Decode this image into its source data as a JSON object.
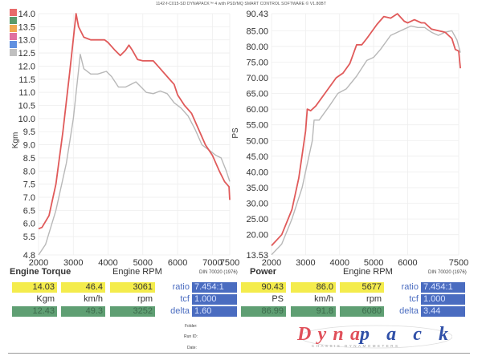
{
  "header": "1142-f-C015-SD DYNAPACK™ 4 with PSD/MQ SMART CONTROL SOFTWARE © V1.80BT",
  "colors": {
    "run1": "#e05a5a",
    "run2": "#b8b8b8",
    "legend": [
      "#e86a6a",
      "#5a9a6a",
      "#f0a850",
      "#e070a0",
      "#6090e0",
      "#c0c0c0"
    ]
  },
  "chart_data": [
    {
      "type": "line",
      "title": "Engine Torque",
      "xlabel": "Engine RPM",
      "ylabel": "Kgm",
      "note": "DIN 70020 (1976)",
      "xlim": [
        2000,
        7500
      ],
      "ylim": [
        4.8,
        14.0
      ],
      "xticks": [
        "2000",
        "3000",
        "4000",
        "5000",
        "6000",
        "7000",
        "7500"
      ],
      "yticks": [
        "14.0",
        "13.5",
        "13.0",
        "12.5",
        "12.0",
        "11.5",
        "11.0",
        "10.5",
        "10.0",
        "9.5",
        "9.0",
        "8.5",
        "8.0",
        "7.5",
        "7.0",
        "6.5",
        "6.0",
        "5.5",
        "4.8"
      ],
      "series": [
        {
          "name": "run1",
          "x": [
            2000,
            2100,
            2300,
            2500,
            2700,
            2900,
            3080,
            3150,
            3300,
            3500,
            3900,
            4000,
            4200,
            4350,
            4500,
            4600,
            4700,
            4850,
            5000,
            5300,
            5500,
            5700,
            5900,
            6000,
            6200,
            6400,
            6600,
            6800,
            7000,
            7200,
            7350,
            7480,
            7500
          ],
          "y": [
            5.8,
            5.85,
            6.3,
            7.5,
            9.5,
            11.8,
            14.0,
            13.5,
            13.1,
            13.0,
            13.0,
            12.9,
            12.6,
            12.4,
            12.6,
            12.8,
            12.6,
            12.25,
            12.2,
            12.2,
            11.9,
            11.6,
            11.3,
            10.9,
            10.5,
            10.2,
            9.6,
            9.0,
            8.6,
            8.0,
            7.6,
            7.4,
            6.9
          ]
        },
        {
          "name": "run2",
          "x": [
            2000,
            2200,
            2500,
            2800,
            3000,
            3200,
            3300,
            3500,
            3700,
            3950,
            4100,
            4300,
            4500,
            4800,
            4950,
            5100,
            5300,
            5500,
            5700,
            5900,
            6100,
            6300,
            6500,
            6700,
            6900,
            7100,
            7250,
            7400,
            7500
          ],
          "y": [
            4.8,
            5.2,
            6.5,
            8.3,
            10.0,
            12.45,
            11.9,
            11.7,
            11.7,
            11.8,
            11.6,
            11.2,
            11.2,
            11.4,
            11.2,
            11.0,
            10.95,
            11.05,
            10.95,
            10.6,
            10.4,
            10.1,
            9.6,
            9.0,
            8.8,
            8.6,
            8.5,
            8.0,
            7.6
          ]
        }
      ]
    },
    {
      "type": "line",
      "title": "Power",
      "xlabel": "Engine RPM",
      "ylabel": "PS",
      "note": "DIN 70020 (1976)",
      "xlim": [
        2000,
        7500
      ],
      "ylim": [
        13.53,
        90.43
      ],
      "xticks": [
        "2000",
        "3000",
        "4000",
        "5000",
        "6000",
        "7500"
      ],
      "yticks": [
        "90.43",
        "85.00",
        "80.00",
        "75.00",
        "70.00",
        "65.00",
        "60.00",
        "55.00",
        "50.00",
        "45.00",
        "40.00",
        "35.00",
        "30.00",
        "25.00",
        "20.00",
        "13.53"
      ],
      "series": [
        {
          "name": "run1",
          "x": [
            2000,
            2300,
            2600,
            2800,
            3000,
            3050,
            3150,
            3300,
            3600,
            3900,
            4100,
            4300,
            4500,
            4650,
            4800,
            5100,
            5300,
            5500,
            5700,
            5900,
            6000,
            6200,
            6400,
            6500,
            6700,
            6900,
            7100,
            7300,
            7400,
            7500,
            7550
          ],
          "y": [
            16.5,
            20,
            28,
            38,
            53,
            60,
            59.5,
            61,
            65.5,
            70,
            71.5,
            74.5,
            80.5,
            80.5,
            82.5,
            87,
            89.5,
            89,
            90.4,
            88,
            87.5,
            88.5,
            87.5,
            87.5,
            85.5,
            85,
            84.5,
            82.5,
            79,
            78.5,
            73
          ]
        },
        {
          "name": "run2",
          "x": [
            2000,
            2300,
            2600,
            2900,
            3200,
            3250,
            3400,
            3700,
            3950,
            4200,
            4500,
            4800,
            5000,
            5200,
            5500,
            5700,
            5900,
            6100,
            6300,
            6500,
            6700,
            6900,
            7100,
            7300,
            7450,
            7500,
            7550
          ],
          "y": [
            13.6,
            17,
            25,
            35,
            50,
            56.5,
            56.5,
            61,
            65,
            66.5,
            70.5,
            75.5,
            76.5,
            79,
            83.5,
            84.5,
            85.5,
            86.5,
            86,
            86,
            84.5,
            83.5,
            84.5,
            85,
            82,
            80,
            78
          ]
        }
      ]
    }
  ],
  "torque_panel": {
    "title": "Engine Torque",
    "rpm_label": "Engine RPM",
    "din": "DIN 70020 (1976)",
    "run1": [
      "14.03",
      "46.4",
      "3061"
    ],
    "units": [
      "Kgm",
      "km/h",
      "rpm"
    ],
    "run2": [
      "12.43",
      "49.3",
      "3252"
    ],
    "labels": [
      "ratio",
      "tcf",
      "delta"
    ],
    "values": [
      "7.454:1",
      "1.000",
      "1.60"
    ]
  },
  "power_panel": {
    "title": "Power",
    "rpm_label": "Engine RPM",
    "din": "DIN 70020 (1976)",
    "run1": [
      "90.43",
      "86.0",
      "5677"
    ],
    "units": [
      "PS",
      "km/h",
      "rpm"
    ],
    "run2": [
      "86.99",
      "91.8",
      "6080"
    ],
    "labels": [
      "ratio",
      "tcf",
      "delta"
    ],
    "values": [
      "7.454:1",
      "1.000",
      "3.44"
    ]
  },
  "meta": {
    "folder": "Folder:",
    "run_id": "Run ID:",
    "date": "Date:"
  },
  "logo": {
    "brand": "Dynapack",
    "tagline": "CHASSIS DYNAMOMETERS"
  }
}
